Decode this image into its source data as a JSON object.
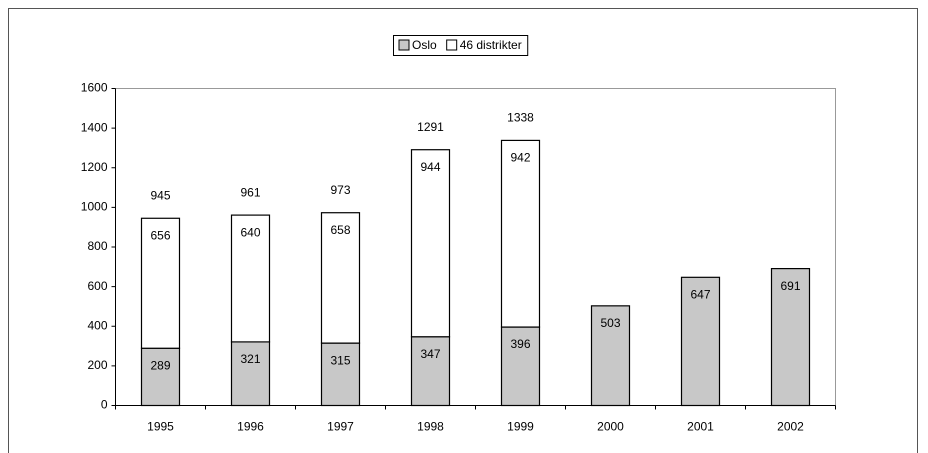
{
  "chart_data": {
    "type": "stacked_bar",
    "categories": [
      "1995",
      "1996",
      "1997",
      "1998",
      "1999",
      "2000",
      "2001",
      "2002"
    ],
    "series": [
      {
        "name": "Oslo",
        "color": "#c8c8c8",
        "values": [
          289,
          321,
          315,
          347,
          396,
          503,
          647,
          691
        ]
      },
      {
        "name": "46 distrikter",
        "color": "#ffffff",
        "values": [
          656,
          640,
          658,
          944,
          942,
          null,
          null,
          null
        ]
      }
    ],
    "total_labels": [
      945,
      961,
      973,
      1291,
      1338,
      null,
      null,
      null
    ],
    "ylim": [
      0,
      1600
    ],
    "yticks": [
      0,
      200,
      400,
      600,
      800,
      1000,
      1200,
      1400,
      1600
    ],
    "legend": "top"
  }
}
